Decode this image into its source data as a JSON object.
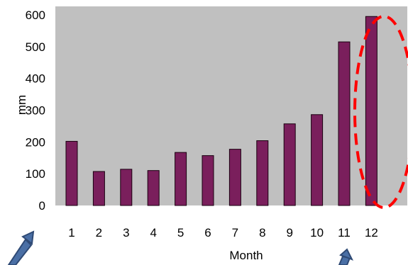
{
  "chart_data": {
    "type": "bar",
    "categories": [
      "1",
      "2",
      "3",
      "4",
      "5",
      "6",
      "7",
      "8",
      "9",
      "10",
      "11",
      "12"
    ],
    "values": [
      202,
      107,
      114,
      110,
      167,
      157,
      177,
      204,
      257,
      286,
      515,
      595
    ],
    "xlabel": "Month",
    "ylabel": "mm",
    "ylim": [
      0,
      600
    ],
    "yticks": [
      "0",
      "100",
      "200",
      "300",
      "400",
      "500",
      "600"
    ],
    "grid": false,
    "legend": "none",
    "bar_color": "#7a1f5c",
    "plot_background": "#c0c0c0",
    "highlight": {
      "categories": [
        "11",
        "12"
      ],
      "style": "dashed-ellipse",
      "color": "#ff0000"
    },
    "annotation_arrows": {
      "count": 2,
      "color": "#3f5f8f"
    }
  }
}
